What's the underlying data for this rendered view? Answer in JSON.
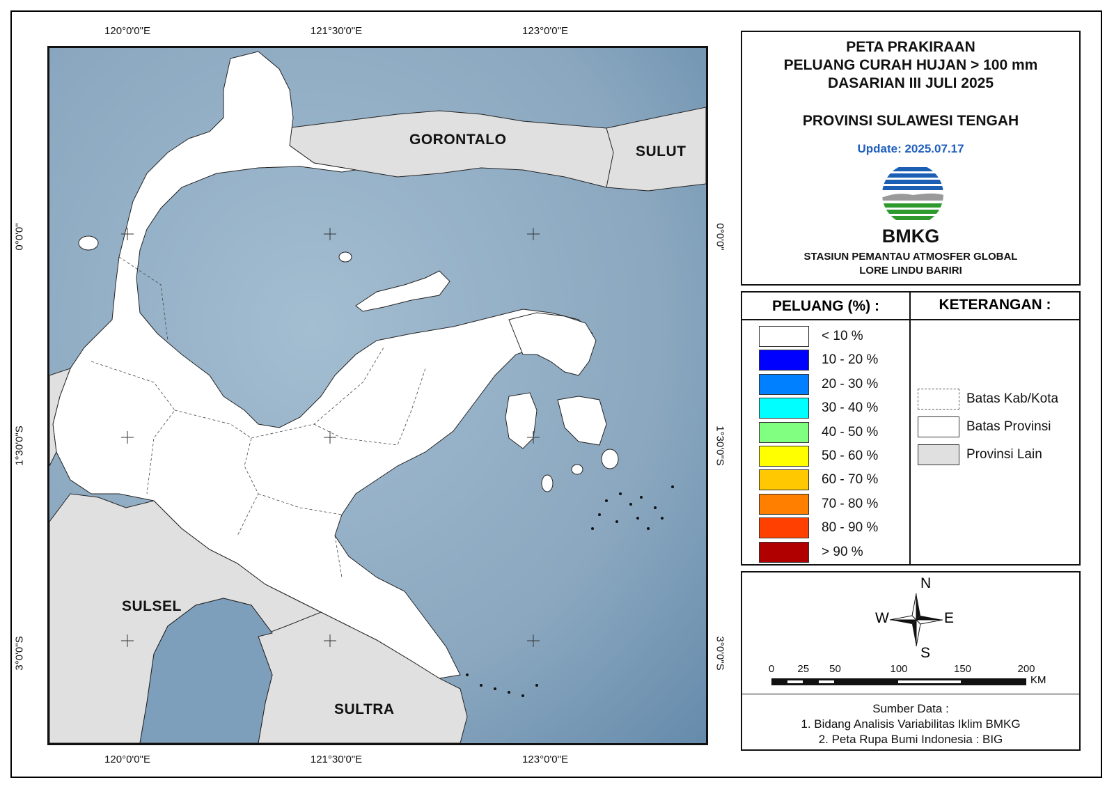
{
  "title": {
    "line1": "PETA PRAKIRAAN",
    "line2": "PELUANG CURAH HUJAN > 100 mm",
    "line3": "DASARIAN III JULI 2025",
    "province": "PROVINSI SULAWESI TENGAH",
    "update": "Update: 2025.07.17"
  },
  "logo": {
    "name": "BMKG",
    "station_line1": "STASIUN PEMANTAU ATMOSFER GLOBAL",
    "station_line2": "LORE LINDU BARIRI"
  },
  "coords": {
    "top": [
      "120°0'0\"E",
      "121°30'0\"E",
      "123°0'0\"E"
    ],
    "bottom": [
      "120°0'0\"E",
      "121°30'0\"E",
      "123°0'0\"E"
    ],
    "left": [
      "0°0'0\"",
      "1°30'0\"S",
      "3°0'0\"S"
    ],
    "right": [
      "0°0'0\"",
      "1°30'0\"S",
      "3°0'0\"S"
    ]
  },
  "map_labels": {
    "gorontalo": "GORONTALO",
    "sulut": "SULUT",
    "sulsel": "SULSEL",
    "sultra": "SULTRA"
  },
  "legend": {
    "peluang_title": "PELUANG (%) :",
    "items": [
      {
        "label": "< 10 %",
        "color": "#ffffff"
      },
      {
        "label": "10 - 20 %",
        "color": "#0000ff"
      },
      {
        "label": "20 - 30 %",
        "color": "#0080ff"
      },
      {
        "label": "30 - 40 %",
        "color": "#00ffff"
      },
      {
        "label": "40 - 50 %",
        "color": "#80ff80"
      },
      {
        "label": "50 - 60 %",
        "color": "#ffff00"
      },
      {
        "label": "60 - 70 %",
        "color": "#ffc800"
      },
      {
        "label": "70 - 80 %",
        "color": "#ff8000"
      },
      {
        "label": "80 - 90 %",
        "color": "#ff4000"
      },
      {
        "label": "> 90 %",
        "color": "#b00000"
      }
    ],
    "keterangan_title": "KETERANGAN :",
    "keterangan": [
      {
        "label": "Batas Kab/Kota",
        "style": "dashed"
      },
      {
        "label": "Batas Provinsi",
        "style": "solid"
      },
      {
        "label": "Provinsi Lain",
        "style": "fill",
        "color": "#e0e0e0"
      }
    ]
  },
  "compass": {
    "n": "N",
    "s": "S",
    "e": "E",
    "w": "W"
  },
  "scale": {
    "ticks": [
      "0",
      "25",
      "50",
      "100",
      "150",
      "200"
    ],
    "unit": "KM"
  },
  "source": {
    "title": "Sumber Data :",
    "line1": "1. Bidang Analisis Variabilitas Iklim BMKG",
    "line2": "2. Peta Rupa Bumi Indonesia : BIG"
  },
  "colors": {
    "sea": "#93aec4",
    "land": "#ffffff",
    "other_province": "#e0e0e0",
    "update_text": "#1f5fbf"
  }
}
